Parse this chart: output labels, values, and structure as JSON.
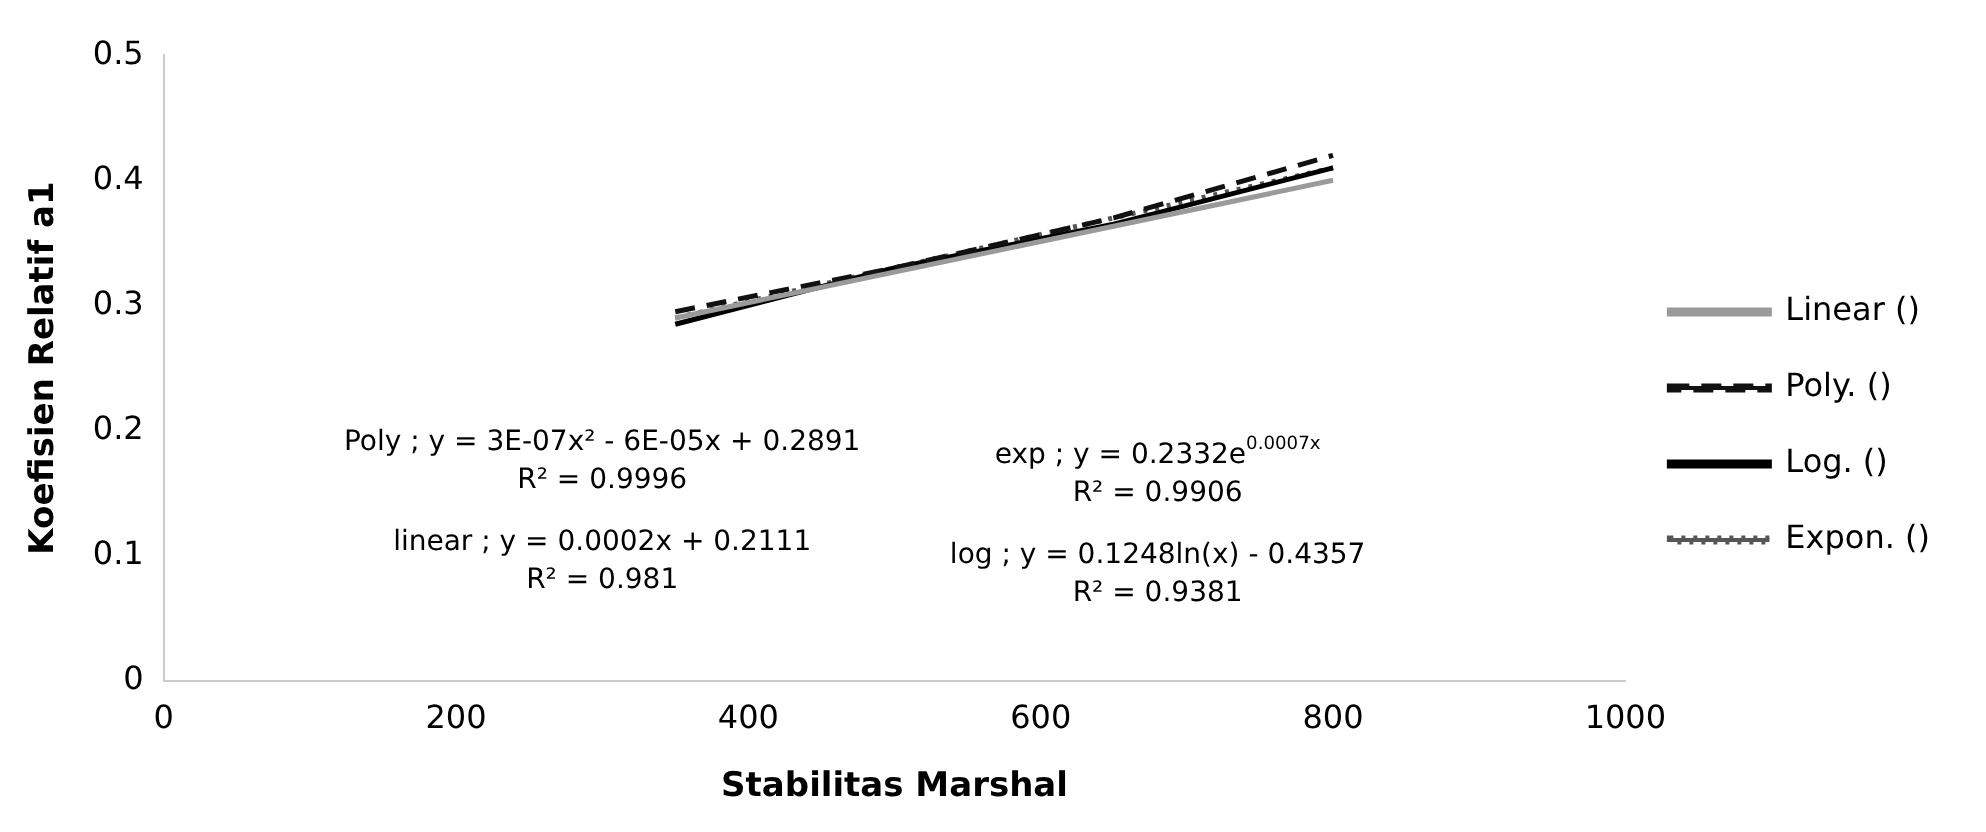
{
  "chart_data": {
    "type": "line",
    "xlabel": "Stabilitas Marshal",
    "ylabel": "Koefisien Relatif a1",
    "xlim": [
      0,
      1000
    ],
    "xticks": [
      0,
      200,
      400,
      600,
      800,
      1000
    ],
    "ylim": [
      0,
      0.5
    ],
    "yticks": [
      0,
      0.1,
      0.2,
      0.3,
      0.4,
      0.5
    ],
    "grid": false,
    "legend": "right",
    "marker": "none",
    "series": [
      {
        "name": "Linear ()",
        "color": "#9a9a9a",
        "line_style": "solid",
        "x": [
          350,
          800
        ],
        "values": [
          0.29,
          0.4
        ]
      },
      {
        "name": "Poly. ()",
        "color": "#111111",
        "line_style": "dashed",
        "x": [
          350,
          500,
          650,
          800
        ],
        "values": [
          0.295,
          0.33,
          0.37,
          0.42
        ]
      },
      {
        "name": "Log. ()",
        "color": "#000000",
        "line_style": "solid",
        "x": [
          350,
          500,
          650,
          800
        ],
        "values": [
          0.285,
          0.33,
          0.365,
          0.41
        ]
      },
      {
        "name": "Expon. ()",
        "color": "#555555",
        "line_style": "dotted",
        "x": [
          350,
          800
        ],
        "values": [
          0.29,
          0.41
        ]
      }
    ],
    "annotations": [
      "Poly ; y = 3E-07x² - 6E-05x + 0.2891\nR² = 0.9996",
      "linear ; y = 0.0002x + 0.2111\nR² = 0.981",
      "exp ; y = 0.2332e$^{0.0007x}$\nR² = 0.9906",
      "log ; y = 0.1248ln(x) - 0.4357\nR² = 0.9381"
    ]
  }
}
